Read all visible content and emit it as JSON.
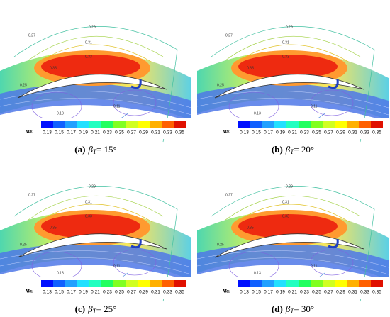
{
  "colorbar": {
    "label": "Ma:",
    "ticks": [
      0.13,
      0.15,
      0.17,
      0.19,
      0.21,
      0.23,
      0.25,
      0.27,
      0.29,
      0.31,
      0.33,
      0.35
    ]
  },
  "panels": [
    {
      "letter": "(a)",
      "symbol": "β",
      "subscript": "T",
      "value": "= 15°",
      "contour_labels": [
        0.27,
        0.29,
        0.31,
        0.33,
        0.35,
        0.25,
        0.13,
        0.11
      ]
    },
    {
      "letter": "(b)",
      "symbol": "β",
      "subscript": "T",
      "value": "= 20°",
      "contour_labels": [
        0.27,
        0.29,
        0.31,
        0.33,
        0.35,
        0.25,
        0.13,
        0.11
      ]
    },
    {
      "letter": "(c)",
      "symbol": "β",
      "subscript": "T",
      "value": "= 25°",
      "contour_labels": [
        0.27,
        0.29,
        0.31,
        0.33,
        0.35,
        0.25,
        0.13,
        0.11
      ]
    },
    {
      "letter": "(d)",
      "symbol": "β",
      "subscript": "T",
      "value": "= 30°",
      "contour_labels": [
        0.27,
        0.29,
        0.31,
        0.33,
        0.35,
        0.25,
        0.13,
        0.11
      ]
    }
  ]
}
